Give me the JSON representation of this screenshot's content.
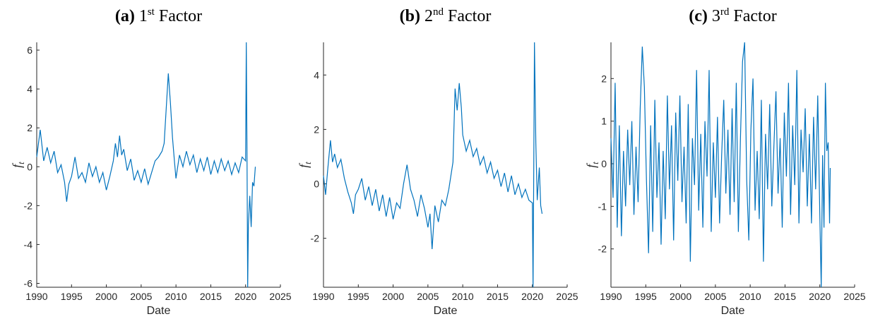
{
  "chart_data": [
    {
      "type": "line",
      "title": {
        "label": "(a)",
        "number": "1",
        "sup": "st",
        "word": "Factor"
      },
      "xlabel": "Date",
      "ylabel": {
        "text": "f",
        "sub": "t"
      },
      "xlim": [
        1990,
        2025
      ],
      "xticks": [
        1990,
        1995,
        2000,
        2005,
        2010,
        2015,
        2020,
        2025
      ],
      "ylim": [
        -6.2,
        6.4
      ],
      "yticks": [
        -6,
        -4,
        -2,
        0,
        2,
        4,
        6
      ],
      "grid": false,
      "color": "#0072bd",
      "x": [
        1990,
        1990.5,
        1991,
        1991.5,
        1992,
        1992.5,
        1993,
        1993.5,
        1994,
        1994.3,
        1994.6,
        1995,
        1995.5,
        1996,
        1996.5,
        1997,
        1997.5,
        1998,
        1998.5,
        1999,
        1999.5,
        2000,
        2000.5,
        2001,
        2001.3,
        2001.6,
        2001.9,
        2002.2,
        2002.5,
        2003,
        2003.5,
        2004,
        2004.5,
        2005,
        2005.5,
        2006,
        2006.5,
        2007,
        2007.5,
        2008,
        2008.3,
        2008.6,
        2008.9,
        2009.2,
        2009.5,
        2009.8,
        2010,
        2010.5,
        2011,
        2011.5,
        2012,
        2012.5,
        2013,
        2013.5,
        2014,
        2014.5,
        2015,
        2015.5,
        2016,
        2016.5,
        2017,
        2017.5,
        2018,
        2018.5,
        2019,
        2019.5,
        2020,
        2020.1,
        2020.2,
        2020.3,
        2020.4,
        2020.6,
        2020.8,
        2021,
        2021.2,
        2021.4
      ],
      "values": [
        0.5,
        1.9,
        0.3,
        1.0,
        0.2,
        0.8,
        -0.3,
        0.1,
        -0.8,
        -1.8,
        -0.9,
        -0.5,
        0.5,
        -0.6,
        -0.3,
        -0.8,
        0.2,
        -0.5,
        0.0,
        -0.8,
        -0.3,
        -1.2,
        -0.5,
        0.3,
        1.2,
        0.5,
        1.6,
        0.6,
        0.9,
        -0.2,
        0.4,
        -0.7,
        -0.2,
        -0.8,
        -0.1,
        -0.9,
        -0.3,
        0.3,
        0.5,
        0.8,
        1.2,
        3.0,
        4.8,
        3.3,
        1.5,
        0.2,
        -0.6,
        0.6,
        0.0,
        0.8,
        0.1,
        0.6,
        -0.3,
        0.4,
        -0.2,
        0.5,
        -0.4,
        0.3,
        -0.3,
        0.4,
        -0.2,
        0.3,
        -0.4,
        0.2,
        -0.3,
        0.5,
        0.3,
        6.4,
        0.8,
        -6.2,
        -3.0,
        -1.5,
        -3.1,
        -0.8,
        -1.0,
        0.0
      ]
    },
    {
      "type": "line",
      "title": {
        "label": "(b)",
        "number": "2",
        "sup": "nd",
        "word": "Factor"
      },
      "xlabel": "Date",
      "ylabel": {
        "text": "f",
        "sub": "t"
      },
      "xlim": [
        1990,
        2025
      ],
      "xticks": [
        1990,
        1995,
        2000,
        2005,
        2010,
        2015,
        2020,
        2025
      ],
      "ylim": [
        -3.8,
        5.2
      ],
      "yticks": [
        -2,
        0,
        2,
        4
      ],
      "grid": false,
      "color": "#0072bd",
      "x": [
        1990,
        1990.3,
        1990.6,
        1991,
        1991.3,
        1991.6,
        1992,
        1992.5,
        1993,
        1993.5,
        1994,
        1994.3,
        1994.6,
        1995,
        1995.5,
        1996,
        1996.5,
        1997,
        1997.5,
        1998,
        1998.5,
        1999,
        1999.5,
        2000,
        2000.5,
        2001,
        2001.5,
        2002,
        2002.5,
        2003,
        2003.5,
        2004,
        2004.5,
        2005,
        2005.3,
        2005.6,
        2006,
        2006.5,
        2007,
        2007.5,
        2008,
        2008.3,
        2008.6,
        2008.9,
        2009.2,
        2009.5,
        2009.8,
        2010,
        2010.5,
        2011,
        2011.5,
        2012,
        2012.5,
        2013,
        2013.5,
        2014,
        2014.5,
        2015,
        2015.5,
        2016,
        2016.5,
        2017,
        2017.5,
        2018,
        2018.5,
        2019,
        2019.5,
        2020,
        2020.1,
        2020.2,
        2020.3,
        2020.5,
        2020.7,
        2021,
        2021.2,
        2021.4
      ],
      "values": [
        0.3,
        -0.4,
        0.5,
        1.6,
        0.8,
        1.1,
        0.6,
        0.9,
        0.2,
        -0.3,
        -0.7,
        -1.1,
        -0.4,
        -0.2,
        0.2,
        -0.6,
        -0.1,
        -0.8,
        -0.2,
        -1.0,
        -0.4,
        -1.2,
        -0.5,
        -1.3,
        -0.7,
        -0.9,
        0.0,
        0.7,
        -0.2,
        -0.6,
        -1.2,
        -0.4,
        -0.9,
        -1.6,
        -1.1,
        -2.4,
        -0.8,
        -1.4,
        -0.6,
        -0.8,
        -0.2,
        0.3,
        0.8,
        3.5,
        2.7,
        3.7,
        2.8,
        1.8,
        1.2,
        1.6,
        1.0,
        1.3,
        0.7,
        1.0,
        0.4,
        0.8,
        0.2,
        0.5,
        -0.1,
        0.4,
        -0.3,
        0.3,
        -0.4,
        0.0,
        -0.5,
        -0.2,
        -0.6,
        -0.7,
        -3.8,
        0.5,
        5.2,
        1.5,
        -0.6,
        0.6,
        -0.8,
        -1.1
      ]
    },
    {
      "type": "line",
      "title": {
        "label": "(c)",
        "number": "3",
        "sup": "rd",
        "word": "Factor"
      },
      "xlabel": "Date",
      "ylabel": {
        "text": "f",
        "sub": "t"
      },
      "xlim": [
        1990,
        2025
      ],
      "xticks": [
        1990,
        1995,
        2000,
        2005,
        2010,
        2015,
        2020,
        2025
      ],
      "ylim": [
        -2.9,
        2.85
      ],
      "yticks": [
        -2,
        -1,
        0,
        1,
        2
      ],
      "grid": false,
      "color": "#0072bd",
      "x": [
        1990,
        1990.3,
        1990.6,
        1990.9,
        1991.2,
        1991.5,
        1991.8,
        1992.1,
        1992.4,
        1992.7,
        1993,
        1993.3,
        1993.6,
        1993.9,
        1994.2,
        1994.5,
        1994.8,
        1995.1,
        1995.4,
        1995.7,
        1996,
        1996.3,
        1996.6,
        1996.9,
        1997.2,
        1997.5,
        1997.8,
        1998.1,
        1998.4,
        1998.7,
        1999,
        1999.3,
        1999.6,
        1999.9,
        2000.2,
        2000.5,
        2000.8,
        2001.1,
        2001.4,
        2001.7,
        2002,
        2002.3,
        2002.6,
        2002.9,
        2003.2,
        2003.5,
        2003.8,
        2004.1,
        2004.4,
        2004.7,
        2005,
        2005.3,
        2005.6,
        2005.9,
        2006.2,
        2006.5,
        2006.8,
        2007.1,
        2007.4,
        2007.7,
        2008,
        2008.3,
        2008.6,
        2008.9,
        2009.2,
        2009.5,
        2009.8,
        2010.1,
        2010.4,
        2010.7,
        2011,
        2011.3,
        2011.6,
        2011.9,
        2012.2,
        2012.5,
        2012.8,
        2013.1,
        2013.4,
        2013.7,
        2014,
        2014.3,
        2014.6,
        2014.9,
        2015.2,
        2015.5,
        2015.8,
        2016.1,
        2016.4,
        2016.7,
        2017,
        2017.3,
        2017.6,
        2017.9,
        2018.2,
        2018.5,
        2018.8,
        2019.1,
        2019.4,
        2019.7,
        2020,
        2020.2,
        2020.4,
        2020.6,
        2020.8,
        2021,
        2021.2,
        2021.4,
        2021.5
      ],
      "values": [
        0.6,
        -0.8,
        1.9,
        -1.5,
        0.9,
        -1.7,
        0.3,
        -1.0,
        0.8,
        -0.5,
        1.0,
        -1.2,
        0.4,
        -0.9,
        1.3,
        2.75,
        1.8,
        -0.4,
        -2.1,
        0.9,
        -1.6,
        1.5,
        -0.8,
        0.5,
        -1.9,
        0.3,
        -1.3,
        1.6,
        -0.6,
        0.9,
        -1.8,
        1.2,
        -0.4,
        1.6,
        -0.9,
        0.4,
        -1.4,
        1.4,
        -2.3,
        0.6,
        -0.5,
        2.2,
        -1.1,
        0.7,
        -1.5,
        1.0,
        -0.3,
        2.2,
        -1.6,
        0.5,
        -0.8,
        1.1,
        -1.4,
        0.2,
        1.5,
        -0.7,
        0.8,
        -1.2,
        1.3,
        -0.9,
        1.9,
        -1.6,
        0.6,
        2.4,
        2.85,
        -0.4,
        -1.8,
        0.8,
        2.0,
        -1.1,
        0.3,
        -1.3,
        1.5,
        -2.3,
        0.7,
        -0.6,
        1.4,
        -1.0,
        0.4,
        1.7,
        -0.7,
        0.6,
        -1.5,
        1.2,
        -0.3,
        1.9,
        -1.2,
        0.9,
        -0.5,
        2.2,
        -1.4,
        0.8,
        -0.2,
        1.3,
        -1.0,
        0.7,
        -1.4,
        1.1,
        -0.6,
        1.6,
        -1.2,
        -2.9,
        0.2,
        -1.5,
        1.9,
        0.3,
        0.5,
        -1.4,
        -0.1
      ]
    }
  ]
}
